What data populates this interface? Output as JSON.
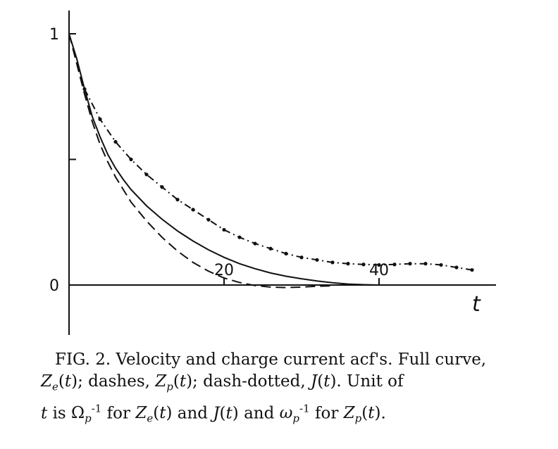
{
  "chart_data": {
    "type": "line",
    "xlim": [
      0,
      52
    ],
    "ylim": [
      -0.25,
      1.1
    ],
    "x_ticks": [
      20,
      40
    ],
    "y_ticks": [
      0,
      0.5,
      1
    ],
    "x_tick_labels": [
      "20",
      "40"
    ],
    "y_tick_labels": [
      "0",
      "1"
    ],
    "xlabel": "t",
    "ylabel": "",
    "grid": false,
    "legend": "none",
    "series": [
      {
        "style": "solid",
        "x": [
          0,
          1,
          2,
          3,
          4,
          5,
          6,
          7,
          8,
          10,
          12,
          14,
          16,
          18,
          20,
          22,
          24,
          26,
          28,
          30,
          32,
          34,
          36,
          38,
          40,
          42
        ],
        "y": [
          1.0,
          0.9,
          0.78,
          0.67,
          0.59,
          0.52,
          0.465,
          0.42,
          0.38,
          0.315,
          0.262,
          0.215,
          0.175,
          0.14,
          0.11,
          0.085,
          0.065,
          0.048,
          0.035,
          0.025,
          0.016,
          0.009,
          0.004,
          0.0015,
          0.0,
          0.0
        ]
      },
      {
        "style": "dashed",
        "x": [
          0,
          1,
          2,
          3,
          4,
          5,
          6,
          8,
          10,
          12,
          14,
          16,
          18,
          20,
          22,
          24,
          26,
          28,
          30,
          32,
          34
        ],
        "y": [
          1.0,
          0.88,
          0.76,
          0.65,
          0.56,
          0.49,
          0.43,
          0.33,
          0.255,
          0.19,
          0.135,
          0.09,
          0.055,
          0.028,
          0.01,
          -0.002,
          -0.008,
          -0.01,
          -0.008,
          -0.005,
          -0.003
        ]
      },
      {
        "style": "dash-dotted",
        "x": [
          2,
          4,
          6,
          8,
          10,
          12,
          14,
          16,
          18,
          20,
          22,
          24,
          26,
          28,
          30,
          32,
          34,
          36,
          38,
          40,
          42,
          44,
          46,
          48,
          50,
          52
        ],
        "y": [
          0.78,
          0.66,
          0.57,
          0.5,
          0.44,
          0.39,
          0.34,
          0.3,
          0.26,
          0.22,
          0.19,
          0.165,
          0.145,
          0.125,
          0.11,
          0.1,
          0.09,
          0.085,
          0.082,
          0.08,
          0.082,
          0.085,
          0.085,
          0.08,
          0.07,
          0.06
        ]
      }
    ]
  },
  "caption": {
    "fig": "FIG. 2.",
    "title": "Velocity and charge current acf's.",
    "full_curve": "Full curve,",
    "dashes": "dashes,",
    "dash_dotted": "dash-dotted,",
    "unit_text": "Unit of",
    "is_text": "is",
    "for_text": "for",
    "and_text": "and",
    "period": "."
  }
}
